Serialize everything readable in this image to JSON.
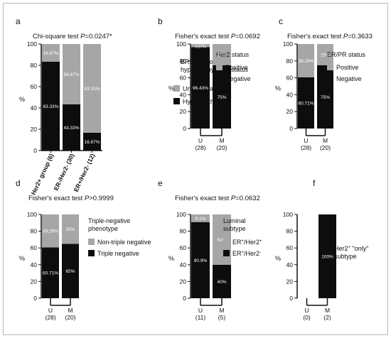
{
  "colors": {
    "black": "#0d0d0d",
    "gray": "#a6a6a6",
    "axis": "#111111"
  },
  "chart_data": [
    {
      "id": "a",
      "panel_letter": "a",
      "type": "bar",
      "stacked": true,
      "title_prefix": "Chi-square test ",
      "title_stat": "P",
      "title_value": "=0.0247*",
      "ylabel": "%",
      "ylim": [
        0,
        100
      ],
      "yticks": [
        "0",
        "20",
        "40",
        "60",
        "80",
        "100"
      ],
      "categories": [
        "Her2+ group (6)",
        "ER-/Her2- (30)",
        "ER+/Her2- (12)"
      ],
      "series": [
        {
          "name": "Hypermethylated",
          "color": "#0d0d0d",
          "values": [
            83.33,
            43.33,
            16.67
          ],
          "labels": [
            "83.33%",
            "43.33%",
            "16.67%"
          ]
        },
        {
          "name": "Unmethylated",
          "color": "#a6a6a6",
          "values": [
            16.67,
            56.67,
            83.33
          ],
          "labels": [
            "16.67%",
            "56.67%",
            "83.33%"
          ]
        }
      ],
      "legend_title": [
        "BRCA1 promoter",
        "hypermethylation status"
      ],
      "legend": [
        {
          "label": "Unmethylated",
          "color": "#a6a6a6"
        },
        {
          "label": "Hypermethylated",
          "color": "#0d0d0d"
        }
      ]
    },
    {
      "id": "b",
      "panel_letter": "b",
      "type": "bar",
      "stacked": true,
      "title_prefix": "Fisher's exact test ",
      "title_stat": "P",
      "title_value": "=0.0692",
      "ylabel": "%",
      "ylim": [
        0,
        100
      ],
      "yticks": [
        "0",
        "20",
        "40",
        "60",
        "80",
        "100"
      ],
      "categories": [
        "U",
        "M"
      ],
      "counts": [
        "(28)",
        "(20)"
      ],
      "series": [
        {
          "name": "Negative",
          "color": "#0d0d0d",
          "values": [
            96.43,
            75
          ],
          "labels": [
            "96.43%",
            "75%"
          ]
        },
        {
          "name": "Positive",
          "color": "#a6a6a6",
          "values": [
            3.57,
            25
          ],
          "labels": [
            "3.57%",
            "25%"
          ]
        }
      ],
      "legend_title": [
        "Her2 status"
      ],
      "legend": [
        {
          "label": "Positive",
          "color": "#a6a6a6"
        },
        {
          "label": "Negative",
          "color": "#0d0d0d"
        }
      ]
    },
    {
      "id": "c",
      "panel_letter": "c",
      "type": "bar",
      "stacked": true,
      "title_prefix": "Fisher's exact test ",
      "title_stat": "P",
      "title_value": "=0.3633",
      "ylabel": "%",
      "ylim": [
        0,
        100
      ],
      "yticks": [
        "0",
        "20",
        "40",
        "60",
        "80",
        "100"
      ],
      "categories": [
        "U",
        "M"
      ],
      "counts": [
        "(28)",
        "(20)"
      ],
      "series": [
        {
          "name": "Negative",
          "color": "#0d0d0d",
          "values": [
            60.71,
            75
          ],
          "labels": [
            "60.71%",
            "75%"
          ]
        },
        {
          "name": "Positive",
          "color": "#a6a6a6",
          "values": [
            39.29,
            25
          ],
          "labels": [
            "39.29%",
            "25%"
          ]
        }
      ],
      "legend_title": [
        "ER/PR status"
      ],
      "legend": [
        {
          "label": "Positive",
          "color": "#a6a6a6"
        },
        {
          "label": "Negative",
          "color": "#0d0d0d"
        }
      ]
    },
    {
      "id": "d",
      "panel_letter": "d",
      "type": "bar",
      "stacked": true,
      "title_prefix": "Fisher's exact test ",
      "title_stat": "P",
      "title_value": ">0.9999",
      "ylabel": "%",
      "ylim": [
        0,
        100
      ],
      "yticks": [
        "0",
        "20",
        "40",
        "60",
        "80",
        "100"
      ],
      "categories": [
        "U",
        "M"
      ],
      "counts": [
        "(28)",
        "(20)"
      ],
      "series": [
        {
          "name": "Triple negative",
          "color": "#0d0d0d",
          "values": [
            60.71,
            65
          ],
          "labels": [
            "60.71%",
            "65%"
          ]
        },
        {
          "name": "Non-triple negative",
          "color": "#a6a6a6",
          "values": [
            39.29,
            35
          ],
          "labels": [
            "39.29%",
            "35%"
          ]
        }
      ],
      "legend_title": [
        "Triple-negative",
        "phenotype"
      ],
      "legend": [
        {
          "label": "Non-triple negative",
          "color": "#a6a6a6"
        },
        {
          "label": "Triple negative",
          "color": "#0d0d0d"
        }
      ]
    },
    {
      "id": "e",
      "panel_letter": "e",
      "type": "bar",
      "stacked": true,
      "title_prefix": "Fisher's exact test ",
      "title_stat": "P",
      "title_value": "=0.0632",
      "ylabel": "%",
      "ylim": [
        0,
        100
      ],
      "yticks": [
        "0",
        "20",
        "40",
        "60",
        "80",
        "100"
      ],
      "categories": [
        "U",
        "M"
      ],
      "counts": [
        "(11)",
        "(5)"
      ],
      "series": [
        {
          "name": "ER+/Her2-",
          "color": "#0d0d0d",
          "values": [
            90.9,
            40
          ],
          "labels": [
            "90.9%",
            "40%"
          ]
        },
        {
          "name": "ER+/Her2+",
          "color": "#a6a6a6",
          "values": [
            9.1,
            60
          ],
          "labels": [
            "9.1%",
            "60%"
          ]
        }
      ],
      "legend_title": [
        "Luminal",
        "subtype"
      ],
      "legend": [
        {
          "label_parts": [
            [
              "ER",
              ""
            ],
            [
              "+",
              "sup"
            ],
            [
              "/Her2",
              ""
            ],
            [
              "+",
              "sup"
            ]
          ],
          "color": "#a6a6a6"
        },
        {
          "label_parts": [
            [
              "ER",
              ""
            ],
            [
              "+",
              "sup"
            ],
            [
              "/Her2",
              ""
            ],
            [
              "-",
              "sup"
            ]
          ],
          "color": "#0d0d0d"
        }
      ]
    },
    {
      "id": "f",
      "panel_letter": "f",
      "type": "bar",
      "stacked": true,
      "title_prefix": "",
      "title_stat": "",
      "title_value": "",
      "ylabel": "%",
      "ylim": [
        0,
        100
      ],
      "yticks": [
        "0",
        "20",
        "40",
        "60",
        "80",
        "100"
      ],
      "categories": [
        "U",
        "M"
      ],
      "counts": [
        "(0)",
        "(2)"
      ],
      "series": [
        {
          "name": "Her2+ \"only\" subtype",
          "color": "#0d0d0d",
          "values": [
            0,
            100
          ],
          "labels": [
            "",
            "100%"
          ]
        }
      ],
      "legend_title": [],
      "legend": [],
      "side_label_parts": [
        [
          [
            "Her2",
            ""
          ],
          [
            "+",
            "sup"
          ],
          [
            " \"only\"",
            ""
          ]
        ],
        [
          [
            "subtype",
            ""
          ]
        ]
      ]
    }
  ]
}
